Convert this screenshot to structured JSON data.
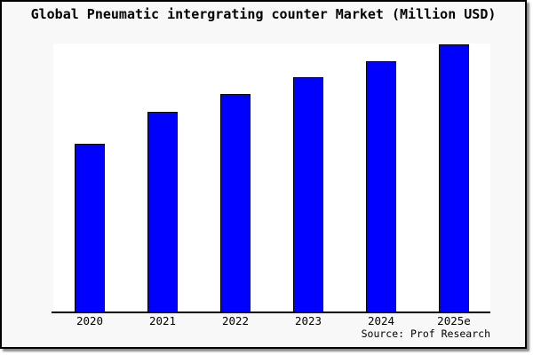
{
  "chart_data": {
    "type": "bar",
    "title": "Global Pneumatic intergrating counter Market (Million USD)",
    "categories": [
      "2020",
      "2021",
      "2022",
      "2023",
      "2024",
      "2025e"
    ],
    "values": [
      62.6,
      74.6,
      81.2,
      87.5,
      93.4,
      99.6
    ],
    "value_note": "no y-axis ticks or data labels shown; values are relative bar heights in % of plot height",
    "xlabel": "",
    "ylabel": "",
    "ylim": [
      0,
      100
    ],
    "grid": false,
    "legend": null,
    "source": "Source: Prof Research",
    "bar_color": "#0000ff",
    "bar_border_color": "#000000"
  },
  "colors": {
    "frame_background": "#f8f8f8",
    "plot_background": "#ffffff",
    "frame_border": "#000000",
    "axis_line": "#000000",
    "bar_fill": "#0000ff",
    "bar_border": "#000000",
    "shadow": "#8a8a8a",
    "text": "#000000"
  }
}
